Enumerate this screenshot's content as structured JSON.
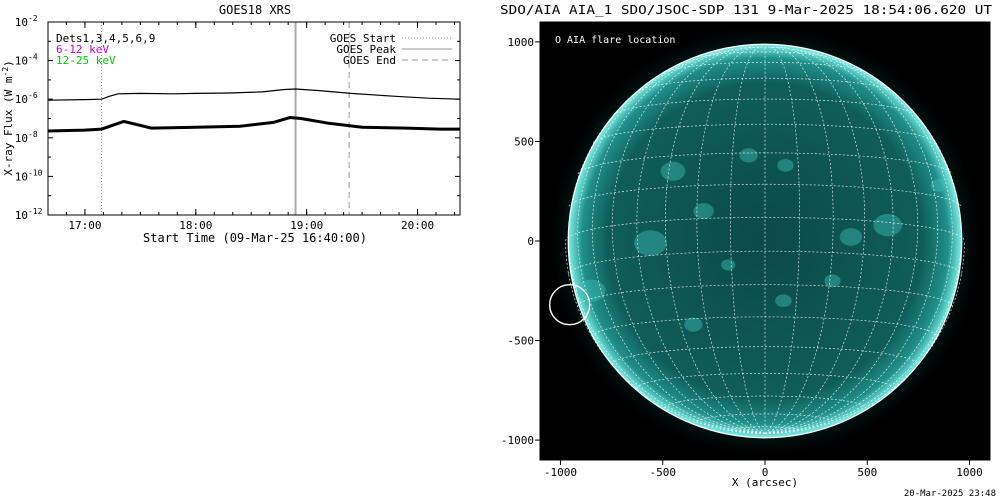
{
  "chart_data": [
    {
      "type": "line",
      "title": "GOES18 XRS",
      "xlabel": "Start Time (09-Mar-25 16:40:00)",
      "ylabel": "X-ray Flux (W m^-2)",
      "ylabel_base": "X-ray Flux (W m",
      "ylabel_exp": "-2",
      "ylabel_tail": ")",
      "y_scale": "log",
      "ylim_exponent": [
        -12,
        -2
      ],
      "y_ticks": [
        {
          "exp": -2,
          "base": "10",
          "sup": "-2"
        },
        {
          "exp": -4,
          "base": "10",
          "sup": "-4"
        },
        {
          "exp": -6,
          "base": "10",
          "sup": "-6"
        },
        {
          "exp": -8,
          "base": "10",
          "sup": "-8"
        },
        {
          "exp": -10,
          "base": "10",
          "sup": "-10"
        },
        {
          "exp": -12,
          "base": "10",
          "sup": "-12"
        }
      ],
      "x_time_range_hours": [
        16.667,
        20.383
      ],
      "x_ticks": [
        {
          "t": 17.0,
          "label": "17:00"
        },
        {
          "t": 18.0,
          "label": "18:00"
        },
        {
          "t": 19.0,
          "label": "19:00"
        },
        {
          "t": 20.0,
          "label": "20:00"
        }
      ],
      "detectors_label": "Dets1,3,4,5,6,9",
      "channel_labels": [
        {
          "text": "6-12 keV",
          "color": "#cc00cc"
        },
        {
          "text": "12-25 keV",
          "color": "#00cc00"
        }
      ],
      "legend": [
        {
          "name": "GOES Start",
          "style": "dotted",
          "color": "#888888"
        },
        {
          "name": "GOES Peak",
          "style": "solid",
          "color": "#999999"
        },
        {
          "name": "GOES End",
          "style": "dashed",
          "color": "#999999"
        }
      ],
      "legend_position": "top-right",
      "markers": {
        "start": 17.15,
        "peak": 18.9,
        "end": 19.383
      },
      "series": [
        {
          "color": "#000000",
          "x": [
            16.667,
            17.0,
            17.15,
            17.22,
            17.3,
            17.5,
            17.8,
            18.0,
            18.3,
            18.6,
            18.8,
            18.9,
            19.1,
            19.4,
            19.8,
            20.1,
            20.383
          ],
          "log_flux": [
            -6.05,
            -6.02,
            -6.0,
            -5.85,
            -5.72,
            -5.7,
            -5.72,
            -5.7,
            -5.68,
            -5.62,
            -5.5,
            -5.47,
            -5.55,
            -5.7,
            -5.85,
            -5.95,
            -6.0
          ]
        },
        {
          "color": "#000000",
          "x": [
            16.667,
            17.0,
            17.15,
            17.25,
            17.35,
            17.6,
            18.0,
            18.4,
            18.7,
            18.85,
            18.95,
            19.2,
            19.5,
            19.9,
            20.2,
            20.383
          ],
          "log_flux": [
            -7.65,
            -7.6,
            -7.55,
            -7.35,
            -7.15,
            -7.5,
            -7.45,
            -7.4,
            -7.2,
            -6.95,
            -7.0,
            -7.25,
            -7.45,
            -7.5,
            -7.55,
            -7.55
          ]
        }
      ]
    },
    {
      "type": "scatter",
      "title": "SDO/AIA AIA_1 SDO/JSOC-SDP 131  9-Mar-2025 18:54:06.620 UT",
      "xlabel": "X (arcsec)",
      "ylabel": "",
      "xlim": [
        -1100,
        1100
      ],
      "ylim": [
        -1100,
        1100
      ],
      "x_ticks": [
        "-1000",
        "-500",
        "0",
        "500",
        "1000"
      ],
      "x_tick_values": [
        -1000,
        -500,
        0,
        500,
        1000
      ],
      "y_ticks": [
        "1000",
        "500",
        "0",
        "-500",
        "-1000"
      ],
      "y_tick_values": [
        1000,
        500,
        0,
        -500,
        -1000
      ],
      "solar_radius_arcsec": 975,
      "grid": true,
      "legend_label": "O AIA flare location",
      "flare_location": {
        "x": -955,
        "y": -320
      },
      "colors": {
        "disk": "#0a4a4a",
        "limb": "#6ee8e0",
        "grid": "#ffffff"
      }
    }
  ],
  "footer": {
    "timestamp": "20-Mar-2025 23:48"
  }
}
